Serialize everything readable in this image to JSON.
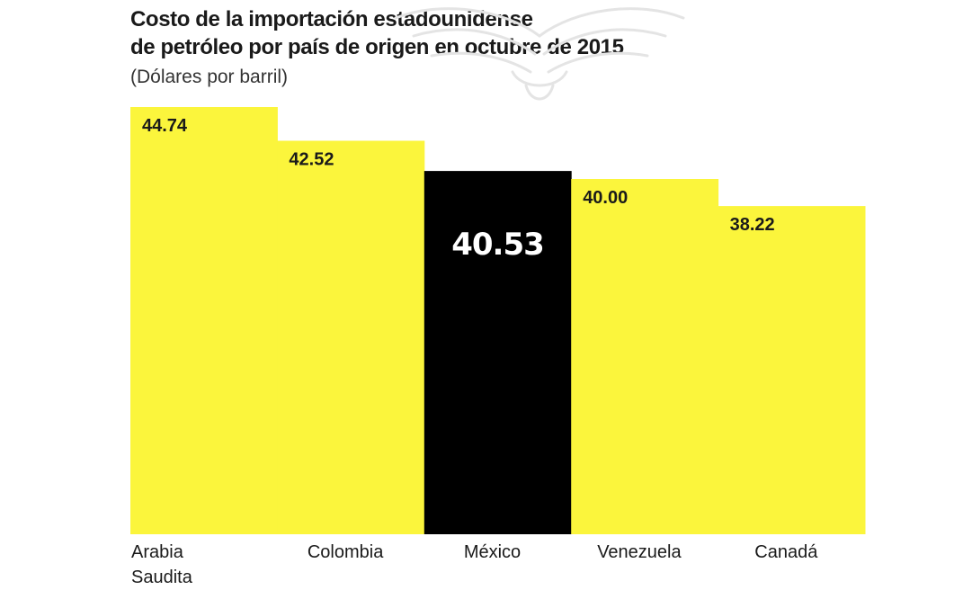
{
  "header": {
    "title": "Costo de la importación estadounidense\nde petróleo por país de origen en octubre de 2015",
    "subtitle": "(Dólares por barril)"
  },
  "colors": {
    "bar": "#fbf53c",
    "highlight": "#000000",
    "text": "#1a1a1a",
    "highlight_text": "#ffffff"
  },
  "chart_data": {
    "type": "bar",
    "title": "Costo de la importación estadounidense de petróleo por país de origen en octubre de 2015",
    "subtitle": "(Dólares por barril)",
    "categories": [
      "Arabia Saudita",
      "Colombia",
      "México",
      "Venezuela",
      "Canadá"
    ],
    "category_lines": [
      [
        "Arabia",
        "Saudita"
      ],
      [
        "Colombia"
      ],
      [
        "México"
      ],
      [
        "Venezuela"
      ],
      [
        "Canadá"
      ]
    ],
    "values": [
      44.74,
      42.52,
      40.53,
      40.0,
      38.22
    ],
    "value_labels": [
      "44.74",
      "42.52",
      "40.53",
      "40.00",
      "38.22"
    ],
    "highlight_index": 2,
    "xlabel": "",
    "ylabel": "",
    "ylim": [
      0,
      44.74
    ],
    "grid": false,
    "legend": "none"
  }
}
